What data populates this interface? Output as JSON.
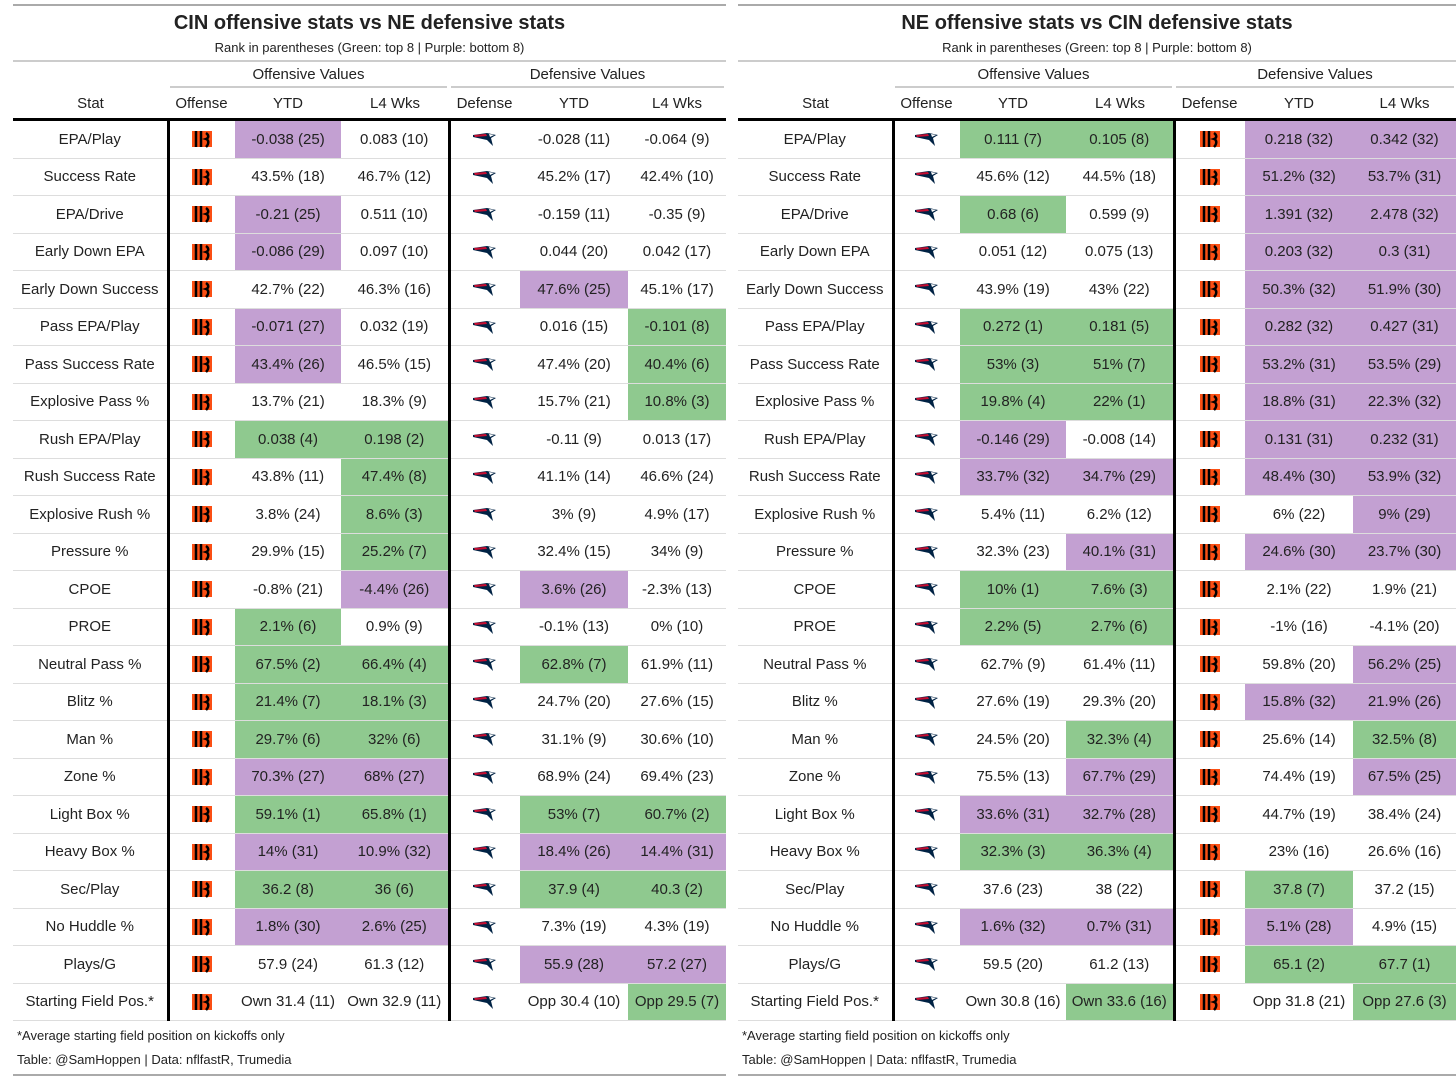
{
  "colors": {
    "green": "#8fc98f",
    "purple": "#c3a0d2"
  },
  "headers": {
    "stat": "Stat",
    "offense": "Offense",
    "defense": "Defense",
    "ytd": "YTD",
    "l4": "L4 Wks",
    "off_values": "Offensive Values",
    "def_values": "Defensive Values"
  },
  "tables": [
    {
      "title": "CIN offensive stats vs NE defensive stats",
      "subtitle": "Rank in parentheses (Green: top 8 | Purple: bottom 8)",
      "offense_icon": "bengals-logo-icon",
      "defense_icon": "patriots-logo-icon",
      "footnote": "*Average starting field position on kickoffs only",
      "credit": "Table: @SamHoppen | Data: nflfastR, Trumedia",
      "rows": [
        {
          "stat": "EPA/Play",
          "o_ytd": "-0.038 (25)",
          "o_ytd_c": "p",
          "o_l4": "0.083 (10)",
          "o_l4_c": "",
          "d_ytd": "-0.028 (11)",
          "d_ytd_c": "",
          "d_l4": "-0.064 (9)",
          "d_l4_c": ""
        },
        {
          "stat": "Success Rate",
          "o_ytd": "43.5% (18)",
          "o_ytd_c": "",
          "o_l4": "46.7% (12)",
          "o_l4_c": "",
          "d_ytd": "45.2% (17)",
          "d_ytd_c": "",
          "d_l4": "42.4% (10)",
          "d_l4_c": ""
        },
        {
          "stat": "EPA/Drive",
          "o_ytd": "-0.21 (25)",
          "o_ytd_c": "p",
          "o_l4": "0.511 (10)",
          "o_l4_c": "",
          "d_ytd": "-0.159 (11)",
          "d_ytd_c": "",
          "d_l4": "-0.35 (9)",
          "d_l4_c": ""
        },
        {
          "stat": "Early Down EPA",
          "o_ytd": "-0.086 (29)",
          "o_ytd_c": "p",
          "o_l4": "0.097 (10)",
          "o_l4_c": "",
          "d_ytd": "0.044 (20)",
          "d_ytd_c": "",
          "d_l4": "0.042 (17)",
          "d_l4_c": ""
        },
        {
          "stat": "Early Down Success",
          "o_ytd": "42.7% (22)",
          "o_ytd_c": "",
          "o_l4": "46.3% (16)",
          "o_l4_c": "",
          "d_ytd": "47.6% (25)",
          "d_ytd_c": "p",
          "d_l4": "45.1% (17)",
          "d_l4_c": ""
        },
        {
          "stat": "Pass EPA/Play",
          "o_ytd": "-0.071 (27)",
          "o_ytd_c": "p",
          "o_l4": "0.032 (19)",
          "o_l4_c": "",
          "d_ytd": "0.016 (15)",
          "d_ytd_c": "",
          "d_l4": "-0.101 (8)",
          "d_l4_c": "g"
        },
        {
          "stat": "Pass Success Rate",
          "o_ytd": "43.4% (26)",
          "o_ytd_c": "p",
          "o_l4": "46.5% (15)",
          "o_l4_c": "",
          "d_ytd": "47.4% (20)",
          "d_ytd_c": "",
          "d_l4": "40.4% (6)",
          "d_l4_c": "g"
        },
        {
          "stat": "Explosive Pass %",
          "o_ytd": "13.7% (21)",
          "o_ytd_c": "",
          "o_l4": "18.3% (9)",
          "o_l4_c": "",
          "d_ytd": "15.7% (21)",
          "d_ytd_c": "",
          "d_l4": "10.8% (3)",
          "d_l4_c": "g"
        },
        {
          "stat": "Rush EPA/Play",
          "o_ytd": "0.038 (4)",
          "o_ytd_c": "g",
          "o_l4": "0.198 (2)",
          "o_l4_c": "g",
          "d_ytd": "-0.11 (9)",
          "d_ytd_c": "",
          "d_l4": "0.013 (17)",
          "d_l4_c": ""
        },
        {
          "stat": "Rush Success Rate",
          "o_ytd": "43.8% (11)",
          "o_ytd_c": "",
          "o_l4": "47.4% (8)",
          "o_l4_c": "g",
          "d_ytd": "41.1% (14)",
          "d_ytd_c": "",
          "d_l4": "46.6% (24)",
          "d_l4_c": ""
        },
        {
          "stat": "Explosive Rush %",
          "o_ytd": "3.8% (24)",
          "o_ytd_c": "",
          "o_l4": "8.6% (3)",
          "o_l4_c": "g",
          "d_ytd": "3% (9)",
          "d_ytd_c": "",
          "d_l4": "4.9% (17)",
          "d_l4_c": ""
        },
        {
          "stat": "Pressure %",
          "o_ytd": "29.9% (15)",
          "o_ytd_c": "",
          "o_l4": "25.2% (7)",
          "o_l4_c": "g",
          "d_ytd": "32.4% (15)",
          "d_ytd_c": "",
          "d_l4": "34% (9)",
          "d_l4_c": ""
        },
        {
          "stat": "CPOE",
          "o_ytd": "-0.8% (21)",
          "o_ytd_c": "",
          "o_l4": "-4.4% (26)",
          "o_l4_c": "p",
          "d_ytd": "3.6% (26)",
          "d_ytd_c": "p",
          "d_l4": "-2.3% (13)",
          "d_l4_c": ""
        },
        {
          "stat": "PROE",
          "o_ytd": "2.1% (6)",
          "o_ytd_c": "g",
          "o_l4": "0.9% (9)",
          "o_l4_c": "",
          "d_ytd": "-0.1% (13)",
          "d_ytd_c": "",
          "d_l4": "0% (10)",
          "d_l4_c": ""
        },
        {
          "stat": "Neutral Pass %",
          "o_ytd": "67.5% (2)",
          "o_ytd_c": "g",
          "o_l4": "66.4% (4)",
          "o_l4_c": "g",
          "d_ytd": "62.8% (7)",
          "d_ytd_c": "g",
          "d_l4": "61.9% (11)",
          "d_l4_c": ""
        },
        {
          "stat": "Blitz %",
          "o_ytd": "21.4% (7)",
          "o_ytd_c": "g",
          "o_l4": "18.1% (3)",
          "o_l4_c": "g",
          "d_ytd": "24.7% (20)",
          "d_ytd_c": "",
          "d_l4": "27.6% (15)",
          "d_l4_c": ""
        },
        {
          "stat": "Man %",
          "o_ytd": "29.7% (6)",
          "o_ytd_c": "g",
          "o_l4": "32% (6)",
          "o_l4_c": "g",
          "d_ytd": "31.1% (9)",
          "d_ytd_c": "",
          "d_l4": "30.6% (10)",
          "d_l4_c": ""
        },
        {
          "stat": "Zone %",
          "o_ytd": "70.3% (27)",
          "o_ytd_c": "p",
          "o_l4": "68% (27)",
          "o_l4_c": "p",
          "d_ytd": "68.9% (24)",
          "d_ytd_c": "",
          "d_l4": "69.4% (23)",
          "d_l4_c": ""
        },
        {
          "stat": "Light Box %",
          "o_ytd": "59.1% (1)",
          "o_ytd_c": "g",
          "o_l4": "65.8% (1)",
          "o_l4_c": "g",
          "d_ytd": "53% (7)",
          "d_ytd_c": "g",
          "d_l4": "60.7% (2)",
          "d_l4_c": "g"
        },
        {
          "stat": "Heavy Box %",
          "o_ytd": "14% (31)",
          "o_ytd_c": "p",
          "o_l4": "10.9% (32)",
          "o_l4_c": "p",
          "d_ytd": "18.4% (26)",
          "d_ytd_c": "p",
          "d_l4": "14.4% (31)",
          "d_l4_c": "p"
        },
        {
          "stat": "Sec/Play",
          "o_ytd": "36.2 (8)",
          "o_ytd_c": "g",
          "o_l4": "36 (6)",
          "o_l4_c": "g",
          "d_ytd": "37.9 (4)",
          "d_ytd_c": "g",
          "d_l4": "40.3 (2)",
          "d_l4_c": "g"
        },
        {
          "stat": "No Huddle %",
          "o_ytd": "1.8% (30)",
          "o_ytd_c": "p",
          "o_l4": "2.6% (25)",
          "o_l4_c": "p",
          "d_ytd": "7.3% (19)",
          "d_ytd_c": "",
          "d_l4": "4.3% (19)",
          "d_l4_c": ""
        },
        {
          "stat": "Plays/G",
          "o_ytd": "57.9 (24)",
          "o_ytd_c": "",
          "o_l4": "61.3 (12)",
          "o_l4_c": "",
          "d_ytd": "55.9 (28)",
          "d_ytd_c": "p",
          "d_l4": "57.2 (27)",
          "d_l4_c": "p"
        },
        {
          "stat": "Starting Field Pos.*",
          "o_ytd": "Own 31.4 (11)",
          "o_ytd_c": "",
          "o_l4": "Own 32.9 (11)",
          "o_l4_c": "",
          "d_ytd": "Opp 30.4 (10)",
          "d_ytd_c": "",
          "d_l4": "Opp 29.5 (7)",
          "d_l4_c": "g"
        }
      ]
    },
    {
      "title": "NE offensive stats vs CIN defensive stats",
      "subtitle": "Rank in parentheses (Green: top 8 | Purple: bottom 8)",
      "offense_icon": "patriots-logo-icon",
      "defense_icon": "bengals-logo-icon",
      "footnote": "*Average starting field position on kickoffs only",
      "credit": "Table: @SamHoppen | Data: nflfastR, Trumedia",
      "rows": [
        {
          "stat": "EPA/Play",
          "o_ytd": "0.111 (7)",
          "o_ytd_c": "g",
          "o_l4": "0.105 (8)",
          "o_l4_c": "g",
          "d_ytd": "0.218 (32)",
          "d_ytd_c": "p",
          "d_l4": "0.342 (32)",
          "d_l4_c": "p"
        },
        {
          "stat": "Success Rate",
          "o_ytd": "45.6% (12)",
          "o_ytd_c": "",
          "o_l4": "44.5% (18)",
          "o_l4_c": "",
          "d_ytd": "51.2% (32)",
          "d_ytd_c": "p",
          "d_l4": "53.7% (31)",
          "d_l4_c": "p"
        },
        {
          "stat": "EPA/Drive",
          "o_ytd": "0.68 (6)",
          "o_ytd_c": "g",
          "o_l4": "0.599 (9)",
          "o_l4_c": "",
          "d_ytd": "1.391 (32)",
          "d_ytd_c": "p",
          "d_l4": "2.478 (32)",
          "d_l4_c": "p"
        },
        {
          "stat": "Early Down EPA",
          "o_ytd": "0.051 (12)",
          "o_ytd_c": "",
          "o_l4": "0.075 (13)",
          "o_l4_c": "",
          "d_ytd": "0.203 (32)",
          "d_ytd_c": "p",
          "d_l4": "0.3 (31)",
          "d_l4_c": "p"
        },
        {
          "stat": "Early Down Success",
          "o_ytd": "43.9% (19)",
          "o_ytd_c": "",
          "o_l4": "43% (22)",
          "o_l4_c": "",
          "d_ytd": "50.3% (32)",
          "d_ytd_c": "p",
          "d_l4": "51.9% (30)",
          "d_l4_c": "p"
        },
        {
          "stat": "Pass EPA/Play",
          "o_ytd": "0.272 (1)",
          "o_ytd_c": "g",
          "o_l4": "0.181 (5)",
          "o_l4_c": "g",
          "d_ytd": "0.282 (32)",
          "d_ytd_c": "p",
          "d_l4": "0.427 (31)",
          "d_l4_c": "p"
        },
        {
          "stat": "Pass Success Rate",
          "o_ytd": "53% (3)",
          "o_ytd_c": "g",
          "o_l4": "51% (7)",
          "o_l4_c": "g",
          "d_ytd": "53.2% (31)",
          "d_ytd_c": "p",
          "d_l4": "53.5% (29)",
          "d_l4_c": "p"
        },
        {
          "stat": "Explosive Pass %",
          "o_ytd": "19.8% (4)",
          "o_ytd_c": "g",
          "o_l4": "22% (1)",
          "o_l4_c": "g",
          "d_ytd": "18.8% (31)",
          "d_ytd_c": "p",
          "d_l4": "22.3% (32)",
          "d_l4_c": "p"
        },
        {
          "stat": "Rush EPA/Play",
          "o_ytd": "-0.146 (29)",
          "o_ytd_c": "p",
          "o_l4": "-0.008 (14)",
          "o_l4_c": "",
          "d_ytd": "0.131 (31)",
          "d_ytd_c": "p",
          "d_l4": "0.232 (31)",
          "d_l4_c": "p"
        },
        {
          "stat": "Rush Success Rate",
          "o_ytd": "33.7% (32)",
          "o_ytd_c": "p",
          "o_l4": "34.7% (29)",
          "o_l4_c": "p",
          "d_ytd": "48.4% (30)",
          "d_ytd_c": "p",
          "d_l4": "53.9% (32)",
          "d_l4_c": "p"
        },
        {
          "stat": "Explosive Rush %",
          "o_ytd": "5.4% (11)",
          "o_ytd_c": "",
          "o_l4": "6.2% (12)",
          "o_l4_c": "",
          "d_ytd": "6% (22)",
          "d_ytd_c": "",
          "d_l4": "9% (29)",
          "d_l4_c": "p"
        },
        {
          "stat": "Pressure %",
          "o_ytd": "32.3% (23)",
          "o_ytd_c": "",
          "o_l4": "40.1% (31)",
          "o_l4_c": "p",
          "d_ytd": "24.6% (30)",
          "d_ytd_c": "p",
          "d_l4": "23.7% (30)",
          "d_l4_c": "p"
        },
        {
          "stat": "CPOE",
          "o_ytd": "10% (1)",
          "o_ytd_c": "g",
          "o_l4": "7.6% (3)",
          "o_l4_c": "g",
          "d_ytd": "2.1% (22)",
          "d_ytd_c": "",
          "d_l4": "1.9% (21)",
          "d_l4_c": ""
        },
        {
          "stat": "PROE",
          "o_ytd": "2.2% (5)",
          "o_ytd_c": "g",
          "o_l4": "2.7% (6)",
          "o_l4_c": "g",
          "d_ytd": "-1% (16)",
          "d_ytd_c": "",
          "d_l4": "-4.1% (20)",
          "d_l4_c": ""
        },
        {
          "stat": "Neutral Pass %",
          "o_ytd": "62.7% (9)",
          "o_ytd_c": "",
          "o_l4": "61.4% (11)",
          "o_l4_c": "",
          "d_ytd": "59.8% (20)",
          "d_ytd_c": "",
          "d_l4": "56.2% (25)",
          "d_l4_c": "p"
        },
        {
          "stat": "Blitz %",
          "o_ytd": "27.6% (19)",
          "o_ytd_c": "",
          "o_l4": "29.3% (20)",
          "o_l4_c": "",
          "d_ytd": "15.8% (32)",
          "d_ytd_c": "p",
          "d_l4": "21.9% (26)",
          "d_l4_c": "p"
        },
        {
          "stat": "Man %",
          "o_ytd": "24.5% (20)",
          "o_ytd_c": "",
          "o_l4": "32.3% (4)",
          "o_l4_c": "g",
          "d_ytd": "25.6% (14)",
          "d_ytd_c": "",
          "d_l4": "32.5% (8)",
          "d_l4_c": "g"
        },
        {
          "stat": "Zone %",
          "o_ytd": "75.5% (13)",
          "o_ytd_c": "",
          "o_l4": "67.7% (29)",
          "o_l4_c": "p",
          "d_ytd": "74.4% (19)",
          "d_ytd_c": "",
          "d_l4": "67.5% (25)",
          "d_l4_c": "p"
        },
        {
          "stat": "Light Box %",
          "o_ytd": "33.6% (31)",
          "o_ytd_c": "p",
          "o_l4": "32.7% (28)",
          "o_l4_c": "p",
          "d_ytd": "44.7% (19)",
          "d_ytd_c": "",
          "d_l4": "38.4% (24)",
          "d_l4_c": ""
        },
        {
          "stat": "Heavy Box %",
          "o_ytd": "32.3% (3)",
          "o_ytd_c": "g",
          "o_l4": "36.3% (4)",
          "o_l4_c": "g",
          "d_ytd": "23% (16)",
          "d_ytd_c": "",
          "d_l4": "26.6% (16)",
          "d_l4_c": ""
        },
        {
          "stat": "Sec/Play",
          "o_ytd": "37.6 (23)",
          "o_ytd_c": "",
          "o_l4": "38 (22)",
          "o_l4_c": "",
          "d_ytd": "37.8 (7)",
          "d_ytd_c": "g",
          "d_l4": "37.2 (15)",
          "d_l4_c": ""
        },
        {
          "stat": "No Huddle %",
          "o_ytd": "1.6% (32)",
          "o_ytd_c": "p",
          "o_l4": "0.7% (31)",
          "o_l4_c": "p",
          "d_ytd": "5.1% (28)",
          "d_ytd_c": "p",
          "d_l4": "4.9% (15)",
          "d_l4_c": ""
        },
        {
          "stat": "Plays/G",
          "o_ytd": "59.5 (20)",
          "o_ytd_c": "",
          "o_l4": "61.2 (13)",
          "o_l4_c": "",
          "d_ytd": "65.1 (2)",
          "d_ytd_c": "g",
          "d_l4": "67.7 (1)",
          "d_l4_c": "g"
        },
        {
          "stat": "Starting Field Pos.*",
          "o_ytd": "Own 30.8 (16)",
          "o_ytd_c": "",
          "o_l4": "Own 33.6 (16)",
          "o_l4_c": "g",
          "d_ytd": "Opp 31.8 (21)",
          "d_ytd_c": "",
          "d_l4": "Opp 27.6 (3)",
          "d_l4_c": "g"
        }
      ]
    }
  ]
}
